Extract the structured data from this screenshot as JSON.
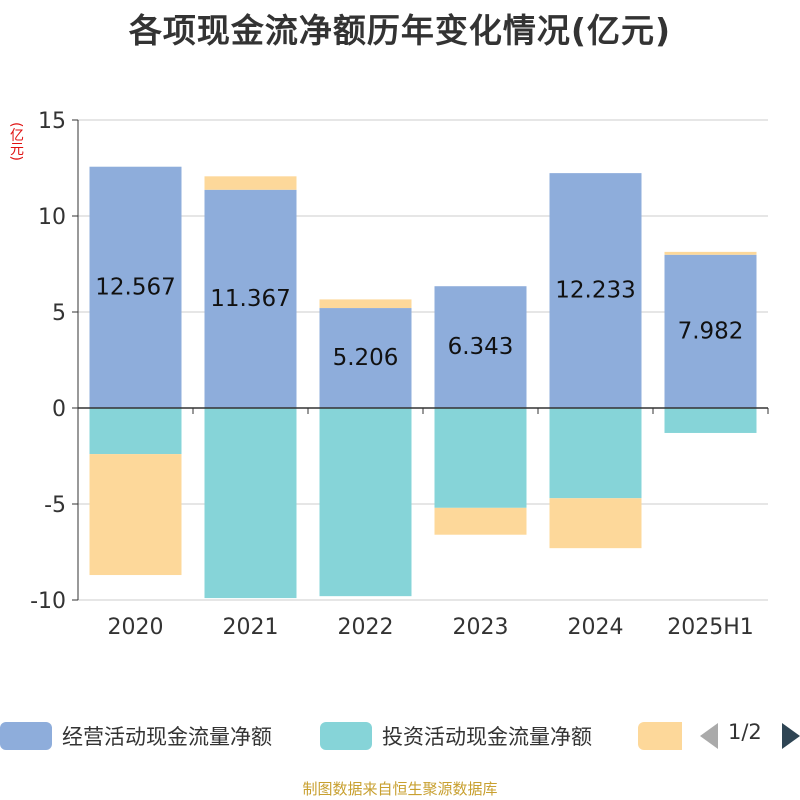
{
  "title": "各项现金流净额历年变化情况(亿元)",
  "unit_label": "(亿元)",
  "legend": {
    "items": [
      {
        "label": "经营活动现金流量净额",
        "color": "#8eaddb"
      },
      {
        "label": "投资活动现金流量净额",
        "color": "#86d4d8"
      },
      {
        "label": "",
        "color": "#fdd89a"
      }
    ],
    "page": "1/2"
  },
  "footer": "制图数据来自恒生聚源数据库",
  "chart_data": {
    "type": "bar",
    "stacked": true,
    "categories": [
      "2020",
      "2021",
      "2022",
      "2023",
      "2024",
      "2025H1"
    ],
    "series": [
      {
        "name": "经营活动现金流量净额",
        "color": "#8eaddb",
        "values": [
          12.567,
          11.367,
          5.206,
          6.343,
          12.233,
          7.982
        ],
        "labels": [
          "12.567",
          "11.367",
          "5.206",
          "6.343",
          "12.233",
          "7.982"
        ]
      },
      {
        "name": "投资活动现金流量净额",
        "color": "#86d4d8",
        "values": [
          -2.4,
          -9.9,
          -9.8,
          -5.2,
          -4.7,
          -1.3
        ]
      },
      {
        "color": "#fdd89a",
        "values": [
          -6.3,
          0.7,
          0.45,
          -1.4,
          -2.6,
          0.15
        ]
      }
    ],
    "ylim": [
      -10,
      15
    ],
    "yticks": [
      15,
      10,
      5,
      0,
      -5,
      -10
    ],
    "grid": true,
    "legend_position": "bottom"
  }
}
